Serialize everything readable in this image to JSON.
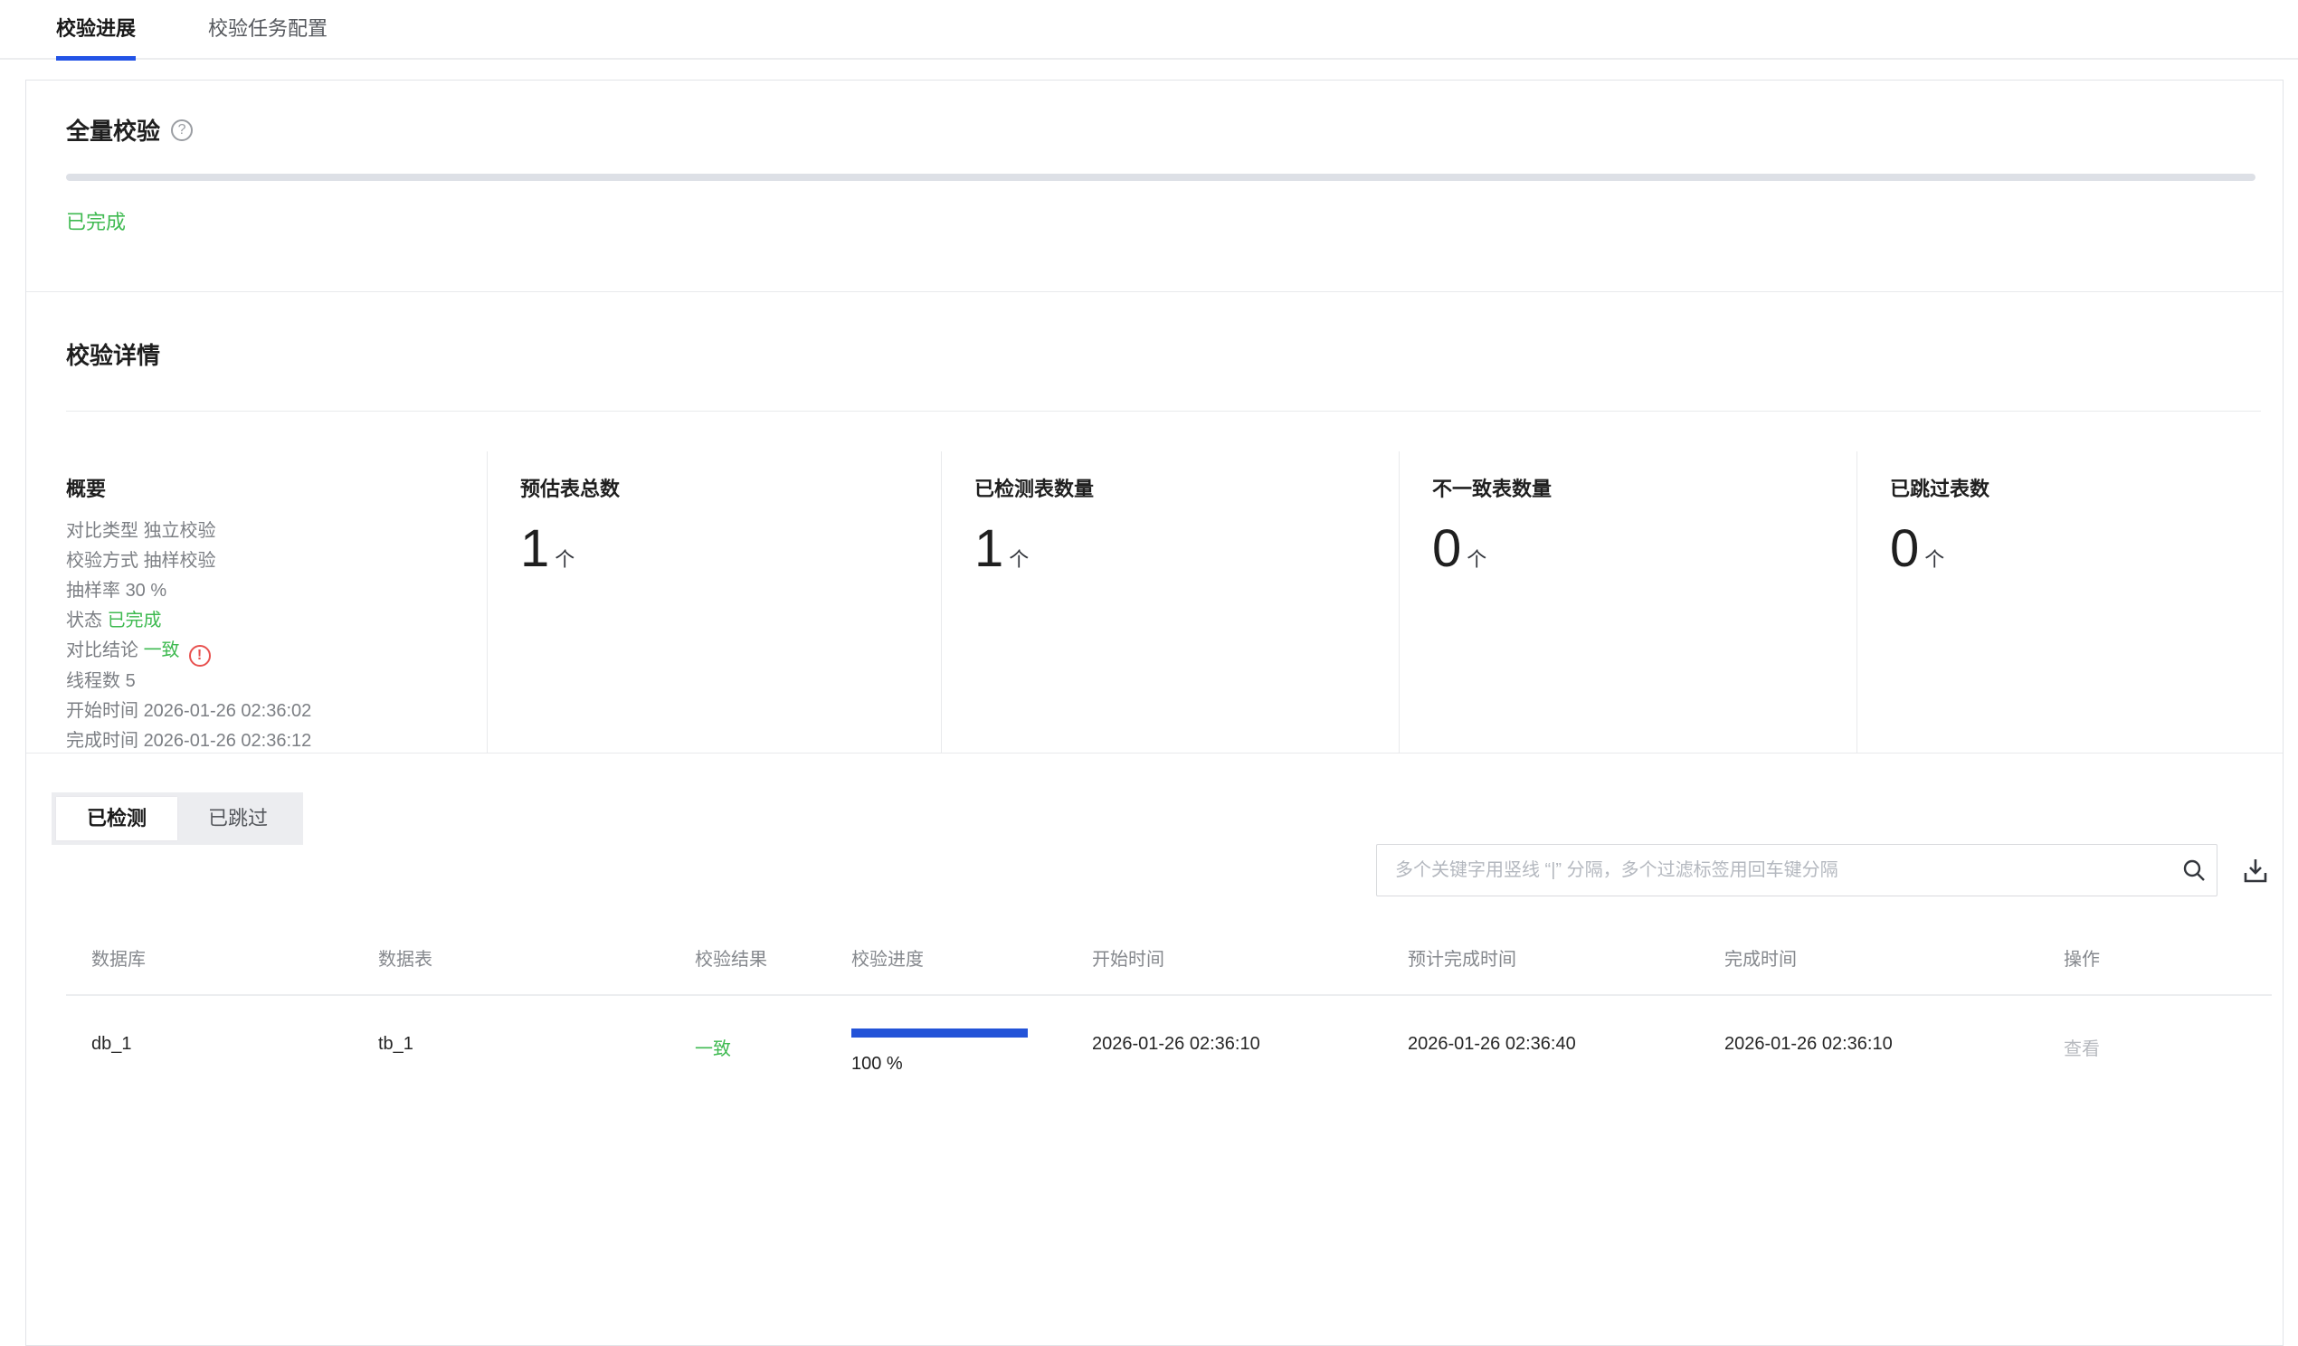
{
  "colors": {
    "accent_blue": "#2253e6",
    "bar_blue": "#2353d8",
    "success_green": "#3fba51",
    "alert_red": "#e8514f",
    "track_gray": "#dde0e6"
  },
  "top_tabs": {
    "progress": "校验进展",
    "config": "校验任务配置"
  },
  "full_check": {
    "title": "全量校验",
    "help_icon": "?",
    "status": "已完成",
    "progress_percent": 100
  },
  "detail": {
    "title": "校验详情",
    "summary": {
      "title": "概要",
      "fields": [
        {
          "label": "对比类型",
          "value": "独立校验"
        },
        {
          "label": "校验方式",
          "value": "抽样校验"
        },
        {
          "label": "抽样率",
          "value": "30 %"
        },
        {
          "label": "状态",
          "value": "已完成"
        },
        {
          "label": "对比结论",
          "value": "一致",
          "icon": "alert-circle",
          "icon_glyph": "!"
        },
        {
          "label": "线程数",
          "value": "5"
        },
        {
          "label": "开始时间",
          "value": "2026-01-26 02:36:02"
        },
        {
          "label": "完成时间",
          "value": "2026-01-26 02:36:12"
        }
      ]
    },
    "stats": [
      {
        "label": "预估表总数",
        "value": "1",
        "unit": "个"
      },
      {
        "label": "已检测表数量",
        "value": "1",
        "unit": "个"
      },
      {
        "label": "不一致表数量",
        "value": "0",
        "unit": "个"
      },
      {
        "label": "已跳过表数",
        "value": "0",
        "unit": "个"
      }
    ]
  },
  "list_section": {
    "tabs": {
      "checked": "已检测",
      "skipped": "已跳过"
    },
    "search_placeholder": "多个关键字用竖线 “|” 分隔，多个过滤标签用回车键分隔",
    "columns": {
      "database": "数据库",
      "table": "数据表",
      "result": "校验结果",
      "progress": "校验进度",
      "start_time": "开始时间",
      "estimated_end_time": "预计完成时间",
      "end_time": "完成时间",
      "action": "操作"
    },
    "rows": [
      {
        "database": "db_1",
        "table": "tb_1",
        "result": "一致",
        "progress_label": "100 %",
        "progress_percent": 100,
        "start_time": "2026-01-26 02:36:10",
        "estimated_end_time": "2026-01-26 02:36:40",
        "end_time": "2026-01-26 02:36:10",
        "action": "查看"
      }
    ]
  }
}
